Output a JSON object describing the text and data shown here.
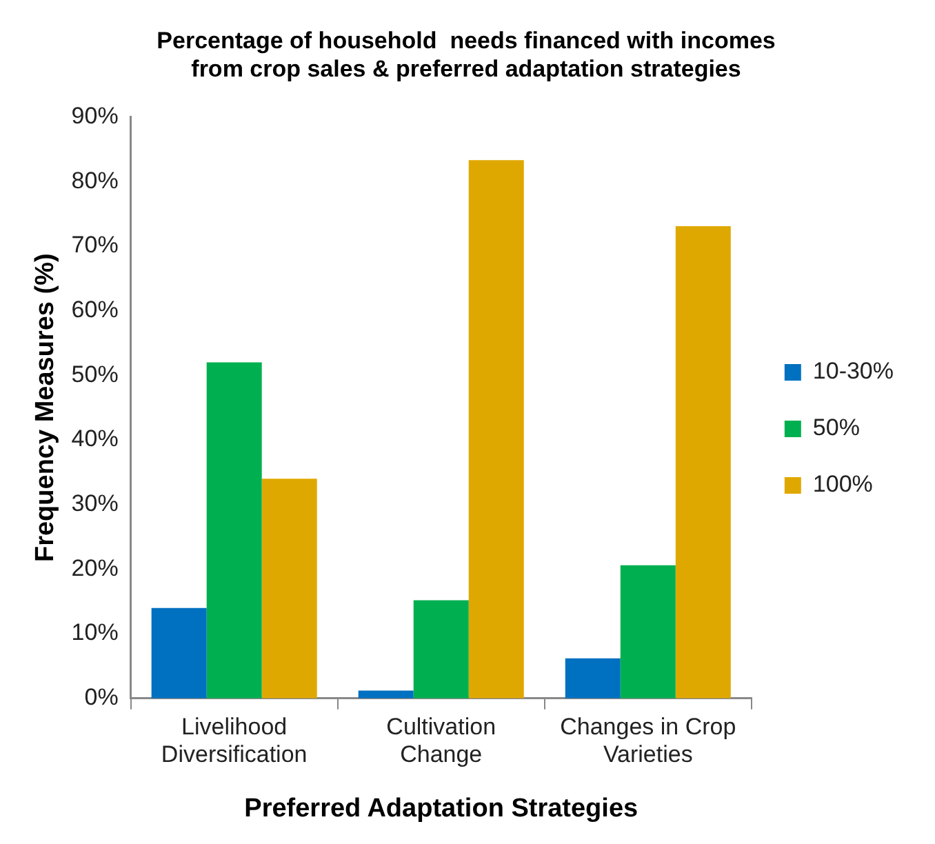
{
  "chart_data": {
    "type": "bar",
    "title": "Percentage of household  needs financed with incomes from crop sales & preferred adaptation strategies",
    "xlabel": "Preferred Adaptation Strategies",
    "ylabel": "Frequency Measures (%)",
    "categories": [
      "Livelihood Diversification",
      "Cultivation Change",
      "Changes in Crop Varieties"
    ],
    "series": [
      {
        "name": "10-30%",
        "color": "#0070c0",
        "values": [
          14.0,
          1.2,
          6.2
        ]
      },
      {
        "name": "50%",
        "color": "#00b050",
        "values": [
          52.0,
          15.2,
          20.6
        ]
      },
      {
        "name": "100%",
        "color": "#dfa800",
        "values": [
          34.0,
          83.3,
          73.1
        ]
      }
    ],
    "ylim": [
      0,
      90
    ],
    "yticks": [
      {
        "value": 0,
        "label": "0%"
      },
      {
        "value": 10,
        "label": "10%"
      },
      {
        "value": 20,
        "label": "20%"
      },
      {
        "value": 30,
        "label": "30%"
      },
      {
        "value": 40,
        "label": "40%"
      },
      {
        "value": 50,
        "label": "50%"
      },
      {
        "value": 60,
        "label": "60%"
      },
      {
        "value": 70,
        "label": "70%"
      },
      {
        "value": 80,
        "label": "80%"
      },
      {
        "value": 90,
        "label": "90%"
      }
    ],
    "grid": false,
    "legend": "right"
  }
}
